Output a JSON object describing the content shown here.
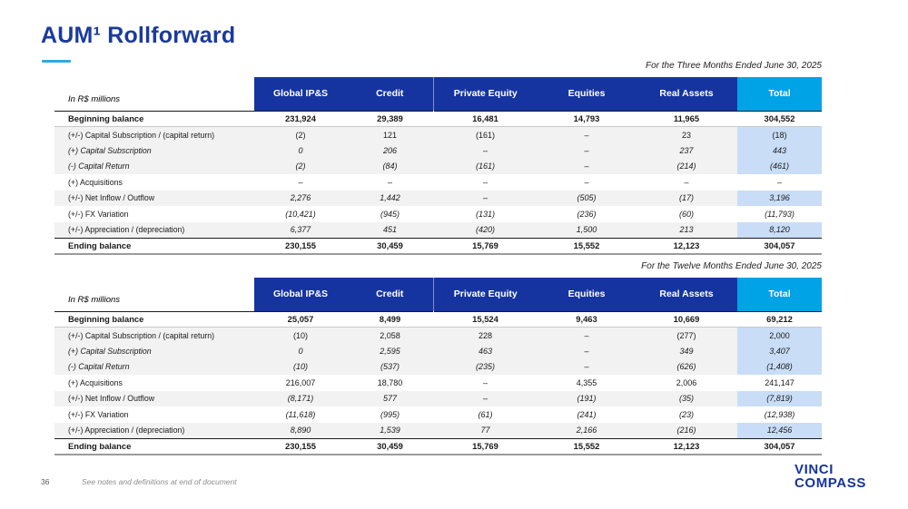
{
  "slide": {
    "title": "AUM¹ Rollforward",
    "page_number": "36",
    "footnote": "See notes and definitions at end of document"
  },
  "logo": {
    "line1": "VINCI",
    "line2": "COMPASS"
  },
  "colors": {
    "header_blue": "#1634a0",
    "total_header_blue": "#00a3e6",
    "total_cell_bg": "#c9ddf6",
    "row_stripe": "#f2f2f2",
    "title_blue": "#1b3a9e",
    "underline_accent": "#29abe2",
    "logo_blue": "#16349c"
  },
  "tables": [
    {
      "type": "table",
      "caption": "For the Three Months Ended June 30, 2025",
      "unit_label": "In R$ millions",
      "columns": [
        "Global IP&S",
        "Credit",
        "Private Equity",
        "Equities",
        "Real Assets",
        "Total"
      ],
      "rows": [
        {
          "label": "Beginning balance",
          "values": [
            "231,924",
            "29,389",
            "16,481",
            "14,793",
            "11,965",
            "304,552"
          ],
          "emphasis": "begin",
          "shaded": false,
          "italic_label": false,
          "italic_values": false
        },
        {
          "label": "(+/-) Capital Subscription / (capital return)",
          "values": [
            "(2)",
            "121",
            "(161)",
            "–",
            "23",
            "(18)"
          ],
          "emphasis": null,
          "shaded": true,
          "italic_label": false,
          "italic_values": false
        },
        {
          "label": "(+) Capital Subscription",
          "values": [
            "0",
            "206",
            "–",
            "–",
            "237",
            "443"
          ],
          "emphasis": null,
          "shaded": true,
          "italic_label": true,
          "italic_values": true
        },
        {
          "label": "(-) Capital Return",
          "values": [
            "(2)",
            "(84)",
            "(161)",
            "–",
            "(214)",
            "(461)"
          ],
          "emphasis": null,
          "shaded": true,
          "italic_label": true,
          "italic_values": true
        },
        {
          "label": "(+) Acquisitions",
          "values": [
            "–",
            "–",
            "–",
            "–",
            "–",
            "–"
          ],
          "emphasis": null,
          "shaded": false,
          "italic_label": false,
          "italic_values": false
        },
        {
          "label": "(+/-) Net Inflow / Outflow",
          "values": [
            "2,276",
            "1,442",
            "–",
            "(505)",
            "(17)",
            "3,196"
          ],
          "emphasis": null,
          "shaded": true,
          "italic_label": false,
          "italic_values": true
        },
        {
          "label": "(+/-) FX Variation",
          "values": [
            "(10,421)",
            "(945)",
            "(131)",
            "(236)",
            "(60)",
            "(11,793)"
          ],
          "emphasis": null,
          "shaded": false,
          "italic_label": false,
          "italic_values": true
        },
        {
          "label": "(+/-) Appreciation / (depreciation)",
          "values": [
            "6,377",
            "451",
            "(420)",
            "1,500",
            "213",
            "8,120"
          ],
          "emphasis": null,
          "shaded": true,
          "italic_label": false,
          "italic_values": true
        },
        {
          "label": "Ending balance",
          "values": [
            "230,155",
            "30,459",
            "15,769",
            "15,552",
            "12,123",
            "304,057"
          ],
          "emphasis": "end",
          "shaded": false,
          "italic_label": false,
          "italic_values": false
        }
      ]
    },
    {
      "type": "table",
      "caption": "For the Twelve Months Ended June 30, 2025",
      "unit_label": "In R$ millions",
      "columns": [
        "Global IP&S",
        "Credit",
        "Private Equity",
        "Equities",
        "Real Assets",
        "Total"
      ],
      "rows": [
        {
          "label": "Beginning balance",
          "values": [
            "25,057",
            "8,499",
            "15,524",
            "9,463",
            "10,669",
            "69,212"
          ],
          "emphasis": "begin",
          "shaded": false,
          "italic_label": false,
          "italic_values": false
        },
        {
          "label": "(+/-) Capital Subscription / (capital return)",
          "values": [
            "(10)",
            "2,058",
            "228",
            "–",
            "(277)",
            "2,000"
          ],
          "emphasis": null,
          "shaded": true,
          "italic_label": false,
          "italic_values": false
        },
        {
          "label": "(+) Capital Subscription",
          "values": [
            "0",
            "2,595",
            "463",
            "–",
            "349",
            "3,407"
          ],
          "emphasis": null,
          "shaded": true,
          "italic_label": true,
          "italic_values": true
        },
        {
          "label": "(-) Capital Return",
          "values": [
            "(10)",
            "(537)",
            "(235)",
            "–",
            "(626)",
            "(1,408)"
          ],
          "emphasis": null,
          "shaded": true,
          "italic_label": true,
          "italic_values": true
        },
        {
          "label": "(+) Acquisitions",
          "values": [
            "216,007",
            "18,780",
            "–",
            "4,355",
            "2,006",
            "241,147"
          ],
          "emphasis": null,
          "shaded": false,
          "italic_label": false,
          "italic_values": false
        },
        {
          "label": "(+/-) Net Inflow / Outflow",
          "values": [
            "(8,171)",
            "577",
            "–",
            "(191)",
            "(35)",
            "(7,819)"
          ],
          "emphasis": null,
          "shaded": true,
          "italic_label": false,
          "italic_values": true
        },
        {
          "label": "(+/-) FX Variation",
          "values": [
            "(11,618)",
            "(995)",
            "(61)",
            "(241)",
            "(23)",
            "(12,938)"
          ],
          "emphasis": null,
          "shaded": false,
          "italic_label": false,
          "italic_values": true
        },
        {
          "label": "(+/-) Appreciation / (depreciation)",
          "values": [
            "8,890",
            "1,539",
            "77",
            "2,166",
            "(216)",
            "12,456"
          ],
          "emphasis": null,
          "shaded": true,
          "italic_label": false,
          "italic_values": true
        },
        {
          "label": "Ending balance",
          "values": [
            "230,155",
            "30,459",
            "15,769",
            "15,552",
            "12,123",
            "304,057"
          ],
          "emphasis": "end",
          "shaded": false,
          "italic_label": false,
          "italic_values": false
        }
      ]
    }
  ]
}
